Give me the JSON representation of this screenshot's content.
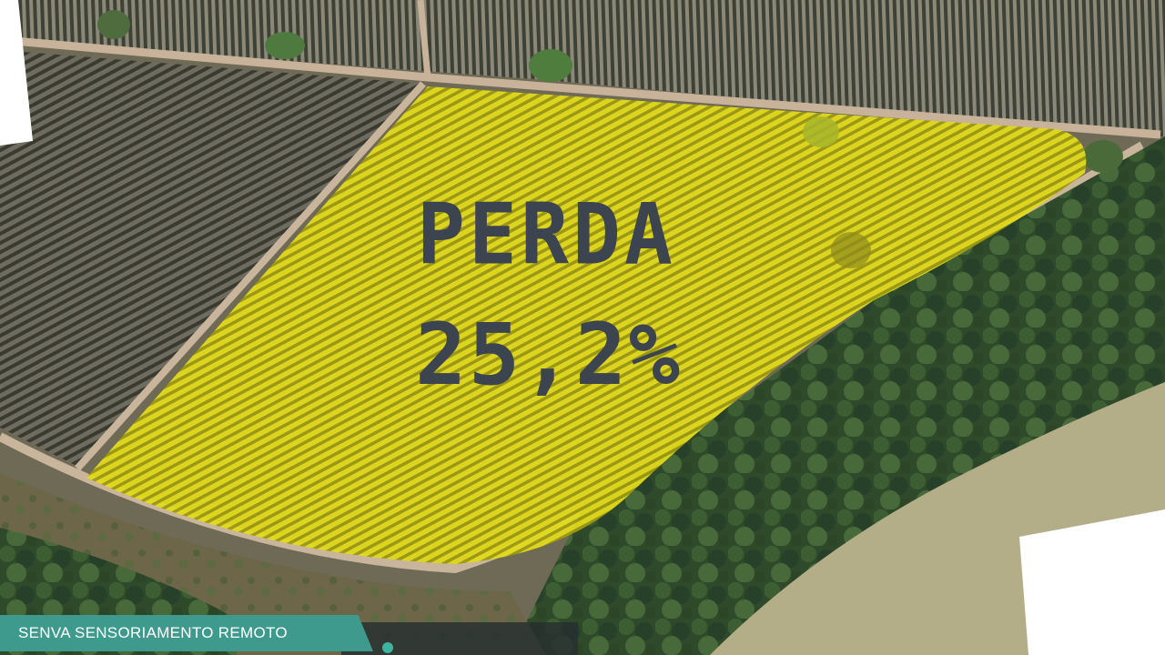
{
  "overlay": {
    "title": "PERDA",
    "value": "25,2%"
  },
  "brand": {
    "label": "SENVA SENSORIAMENTO REMOTO"
  },
  "colors": {
    "highlight": "#d9d117",
    "overlay_text": "#3c4450",
    "brand_bar": "#3f9a8e"
  }
}
